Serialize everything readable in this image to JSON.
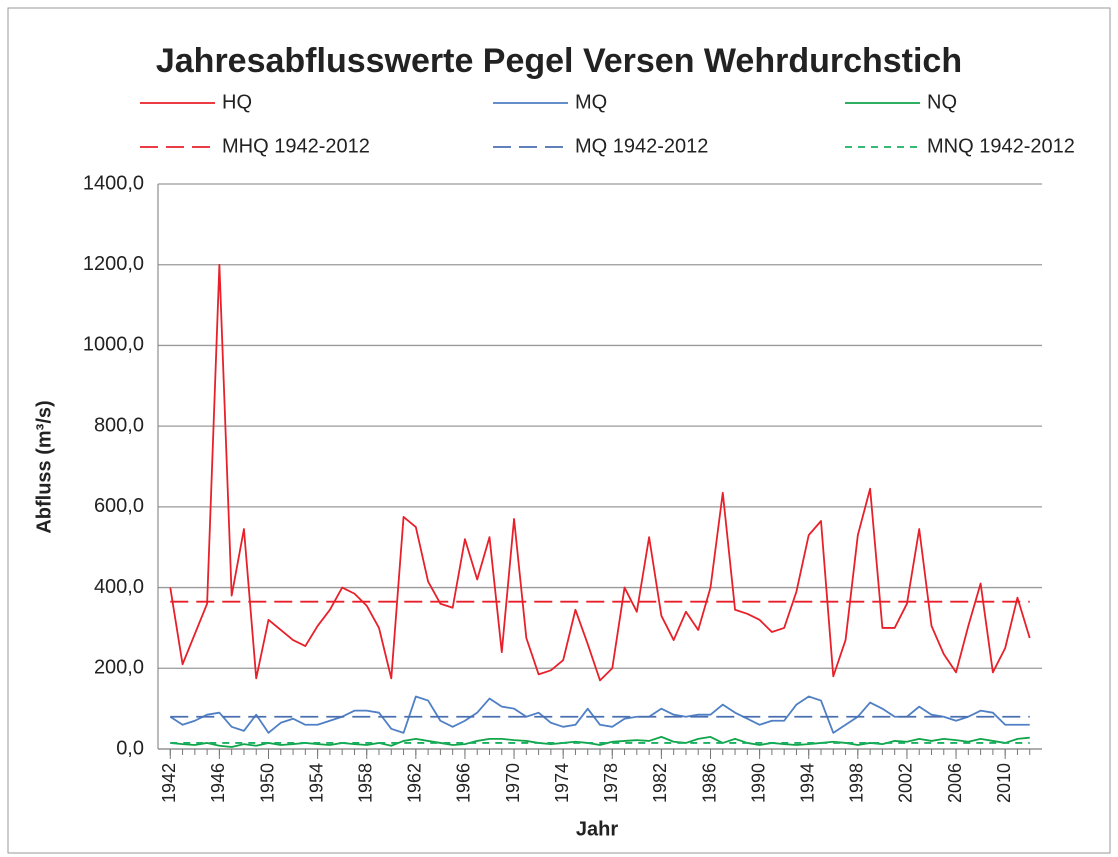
{
  "chart_data": {
    "type": "line",
    "title": "Jahresabflusswerte Pegel Versen Wehrdurchstich",
    "xlabel": "Jahr",
    "ylabel": "Abfluss (m³/s)",
    "x": [
      1942,
      1943,
      1944,
      1945,
      1946,
      1947,
      1948,
      1949,
      1950,
      1951,
      1952,
      1953,
      1954,
      1955,
      1956,
      1957,
      1958,
      1959,
      1960,
      1961,
      1962,
      1963,
      1964,
      1965,
      1966,
      1967,
      1968,
      1969,
      1970,
      1971,
      1972,
      1973,
      1974,
      1975,
      1976,
      1977,
      1978,
      1979,
      1980,
      1981,
      1982,
      1983,
      1984,
      1985,
      1986,
      1987,
      1988,
      1989,
      1990,
      1991,
      1992,
      1993,
      1994,
      1995,
      1996,
      1997,
      1998,
      1999,
      2000,
      2001,
      2002,
      2003,
      2004,
      2005,
      2006,
      2007,
      2008,
      2009,
      2010,
      2011,
      2012
    ],
    "series": [
      {
        "name": "HQ",
        "color": "#e8202a",
        "values": [
          400,
          210,
          285,
          360,
          1200,
          380,
          545,
          175,
          320,
          295,
          270,
          255,
          305,
          345,
          400,
          385,
          355,
          300,
          175,
          575,
          550,
          415,
          360,
          350,
          520,
          420,
          525,
          240,
          570,
          275,
          185,
          195,
          220,
          345,
          260,
          170,
          200,
          400,
          340,
          525,
          330,
          270,
          340,
          295,
          400,
          635,
          345,
          335,
          320,
          290,
          300,
          390,
          530,
          565,
          180,
          270,
          530,
          645,
          300,
          300,
          360,
          545,
          305,
          235,
          190,
          305,
          410,
          190,
          250,
          375,
          275
        ]
      },
      {
        "name": "MQ",
        "color": "#4f7fc4",
        "values": [
          80,
          60,
          70,
          85,
          90,
          55,
          45,
          85,
          40,
          65,
          75,
          60,
          60,
          70,
          80,
          95,
          95,
          90,
          50,
          40,
          130,
          120,
          70,
          55,
          70,
          90,
          125,
          105,
          100,
          80,
          90,
          65,
          55,
          60,
          100,
          60,
          55,
          75,
          80,
          80,
          100,
          85,
          80,
          85,
          85,
          110,
          90,
          75,
          60,
          70,
          70,
          110,
          130,
          120,
          40,
          60,
          80,
          115,
          100,
          80,
          80,
          105,
          85,
          80,
          70,
          80,
          95,
          90,
          60,
          60,
          60
        ]
      },
      {
        "name": "NQ",
        "color": "#10a54a",
        "values": [
          15,
          12,
          10,
          15,
          8,
          5,
          12,
          8,
          15,
          10,
          12,
          15,
          12,
          10,
          15,
          12,
          10,
          15,
          8,
          20,
          25,
          20,
          15,
          10,
          12,
          20,
          25,
          25,
          22,
          20,
          15,
          12,
          15,
          18,
          15,
          10,
          18,
          20,
          22,
          20,
          30,
          18,
          15,
          25,
          30,
          15,
          25,
          15,
          10,
          15,
          12,
          10,
          12,
          15,
          18,
          15,
          10,
          15,
          12,
          20,
          18,
          25,
          20,
          25,
          22,
          18,
          25,
          20,
          15,
          25,
          28
        ]
      },
      {
        "name": "MHQ 1942-2012",
        "color": "#e8202a",
        "dashed": true,
        "value": 365
      },
      {
        "name": "MQ 1942-2012",
        "color": "#4a6fb0",
        "dashed": true,
        "value": 80
      },
      {
        "name": "MNQ 1942-2012",
        "color": "#18b060",
        "dashed": true,
        "value": 15
      }
    ],
    "xlim": [
      1941,
      2013
    ],
    "xticks": [
      1942,
      1946,
      1950,
      1954,
      1958,
      1962,
      1966,
      1970,
      1974,
      1978,
      1982,
      1986,
      1990,
      1994,
      1998,
      2002,
      2006,
      2010
    ],
    "ylim": [
      0,
      1400
    ],
    "yticks": [
      {
        "value": 0,
        "label": "0,0"
      },
      {
        "value": 200,
        "label": "200,0"
      },
      {
        "value": 400,
        "label": "400,0"
      },
      {
        "value": 600,
        "label": "600,0"
      },
      {
        "value": 800,
        "label": "800,0"
      },
      {
        "value": 1000,
        "label": "1000,0"
      },
      {
        "value": 1200,
        "label": "1200,0"
      },
      {
        "value": 1400,
        "label": "1400,0"
      }
    ],
    "grid": true
  }
}
